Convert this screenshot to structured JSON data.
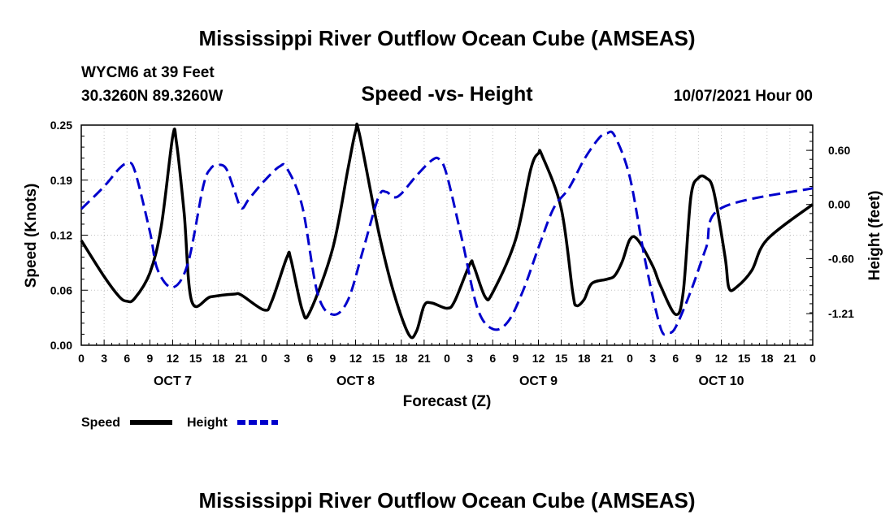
{
  "title_top": "Mississippi River Outflow Ocean Cube (AMSEAS)",
  "title_bottom": "Mississippi River Outflow Ocean Cube (AMSEAS)",
  "station": "WYCM6 at 39 Feet",
  "coords": "30.3260N  89.3260W",
  "subtitle": "Speed -vs- Height",
  "datetime": "10/07/2021 Hour 00",
  "colors": {
    "speed": "#000000",
    "height": "#0000cc"
  },
  "chart_data": {
    "type": "line",
    "title": "Speed -vs- Height",
    "xlabel": "Forecast (Z)",
    "ylabel_left": "Speed (Knots)",
    "ylabel_right": "Height (feet)",
    "xlim": [
      0,
      96
    ],
    "ylim_left": [
      0,
      0.25
    ],
    "ylim_right": [
      -1.56,
      0.88
    ],
    "x_tick_values": [
      0,
      3,
      6,
      9,
      12,
      15,
      18,
      21,
      24,
      27,
      30,
      33,
      36,
      39,
      42,
      45,
      48,
      51,
      54,
      57,
      60,
      63,
      66,
      69,
      72,
      75,
      78,
      81,
      84,
      87,
      90,
      93,
      96
    ],
    "x_tick_labels": [
      "0",
      "3",
      "6",
      "9",
      "12",
      "15",
      "18",
      "21",
      "0",
      "3",
      "6",
      "9",
      "12",
      "15",
      "18",
      "21",
      "0",
      "3",
      "6",
      "9",
      "12",
      "15",
      "18",
      "21",
      "0",
      "3",
      "6",
      "9",
      "12",
      "15",
      "18",
      "21",
      "0"
    ],
    "left_tick_values": [
      0,
      0.0625,
      0.125,
      0.1875,
      0.25
    ],
    "left_tick_labels": [
      "0.00",
      "0.06",
      "0.12",
      "0.19",
      "0.25"
    ],
    "right_tick_values": [
      0.6,
      0.0,
      -0.6,
      -1.21
    ],
    "right_tick_labels": [
      "0.60",
      "0.00",
      "-0.60",
      "-1.21"
    ],
    "day_labels": [
      {
        "x": 12,
        "label": "OCT 7"
      },
      {
        "x": 36,
        "label": "OCT 8"
      },
      {
        "x": 60,
        "label": "OCT 9"
      },
      {
        "x": 84,
        "label": "OCT 10"
      }
    ],
    "series": [
      {
        "name": "Speed",
        "axis": "left",
        "style": "solid",
        "points": [
          [
            0,
            0.119
          ],
          [
            3,
            0.078
          ],
          [
            5,
            0.055
          ],
          [
            6,
            0.05
          ],
          [
            7,
            0.053
          ],
          [
            9,
            0.082
          ],
          [
            10.5,
            0.135
          ],
          [
            12,
            0.237
          ],
          [
            12.5,
            0.23
          ],
          [
            13.5,
            0.15
          ],
          [
            14.5,
            0.05
          ],
          [
            17,
            0.055
          ],
          [
            20,
            0.058
          ],
          [
            21,
            0.057
          ],
          [
            24,
            0.04
          ],
          [
            25,
            0.05
          ],
          [
            27,
            0.1
          ],
          [
            27.5,
            0.098
          ],
          [
            29,
            0.04
          ],
          [
            30,
            0.038
          ],
          [
            33,
            0.11
          ],
          [
            35,
            0.2
          ],
          [
            36,
            0.243
          ],
          [
            36.5,
            0.24
          ],
          [
            39,
            0.13
          ],
          [
            41,
            0.06
          ],
          [
            43,
            0.012
          ],
          [
            44,
            0.016
          ],
          [
            45,
            0.045
          ],
          [
            46,
            0.048
          ],
          [
            48,
            0.042
          ],
          [
            49,
            0.05
          ],
          [
            51,
            0.092
          ],
          [
            51.5,
            0.09
          ],
          [
            53,
            0.055
          ],
          [
            54,
            0.06
          ],
          [
            57,
            0.12
          ],
          [
            59,
            0.2
          ],
          [
            60,
            0.218
          ],
          [
            60.5,
            0.215
          ],
          [
            63,
            0.155
          ],
          [
            64.5,
            0.06
          ],
          [
            65,
            0.045
          ],
          [
            66,
            0.052
          ],
          [
            67,
            0.07
          ],
          [
            69,
            0.075
          ],
          [
            70,
            0.079
          ],
          [
            71,
            0.095
          ],
          [
            72,
            0.12
          ],
          [
            73,
            0.12
          ],
          [
            75,
            0.09
          ],
          [
            76,
            0.068
          ],
          [
            78,
            0.035
          ],
          [
            79,
            0.06
          ],
          [
            80,
            0.168
          ],
          [
            81,
            0.19
          ],
          [
            82,
            0.19
          ],
          [
            83,
            0.175
          ],
          [
            84.5,
            0.1
          ],
          [
            85,
            0.065
          ],
          [
            86,
            0.066
          ],
          [
            88,
            0.085
          ],
          [
            90,
            0.12
          ],
          [
            96,
            0.16
          ]
        ]
      },
      {
        "name": "Height",
        "axis": "right",
        "style": "dashed",
        "points": [
          [
            0,
            -0.05
          ],
          [
            3,
            0.2
          ],
          [
            5,
            0.4
          ],
          [
            6,
            0.45
          ],
          [
            7,
            0.38
          ],
          [
            9,
            -0.3
          ],
          [
            10,
            -0.72
          ],
          [
            12,
            -0.92
          ],
          [
            14,
            -0.65
          ],
          [
            16,
            0.2
          ],
          [
            17,
            0.4
          ],
          [
            18,
            0.44
          ],
          [
            19,
            0.4
          ],
          [
            20,
            0.18
          ],
          [
            21,
            -0.04
          ],
          [
            22,
            0.06
          ],
          [
            24,
            0.26
          ],
          [
            26,
            0.42
          ],
          [
            27,
            0.4
          ],
          [
            29,
            -0.02
          ],
          [
            31,
            -0.98
          ],
          [
            33,
            -1.22
          ],
          [
            35,
            -1.06
          ],
          [
            37,
            -0.5
          ],
          [
            39,
            0.08
          ],
          [
            40,
            0.14
          ],
          [
            41,
            0.08
          ],
          [
            42,
            0.12
          ],
          [
            44,
            0.32
          ],
          [
            46,
            0.49
          ],
          [
            47,
            0.5
          ],
          [
            48,
            0.32
          ],
          [
            50,
            -0.4
          ],
          [
            52,
            -1.15
          ],
          [
            54,
            -1.38
          ],
          [
            56,
            -1.3
          ],
          [
            58,
            -0.95
          ],
          [
            60,
            -0.48
          ],
          [
            62,
            -0.04
          ],
          [
            64,
            0.18
          ],
          [
            66,
            0.5
          ],
          [
            68,
            0.74
          ],
          [
            69,
            0.79
          ],
          [
            70,
            0.76
          ],
          [
            72,
            0.3
          ],
          [
            74,
            -0.62
          ],
          [
            76,
            -1.36
          ],
          [
            77,
            -1.42
          ],
          [
            78,
            -1.36
          ],
          [
            80,
            -0.96
          ],
          [
            82,
            -0.48
          ],
          [
            84,
            -0.04
          ],
          [
            96,
            0.18
          ]
        ]
      }
    ],
    "legend": [
      {
        "label": "Speed",
        "series": "Speed"
      },
      {
        "label": "Height",
        "series": "Height"
      }
    ]
  }
}
